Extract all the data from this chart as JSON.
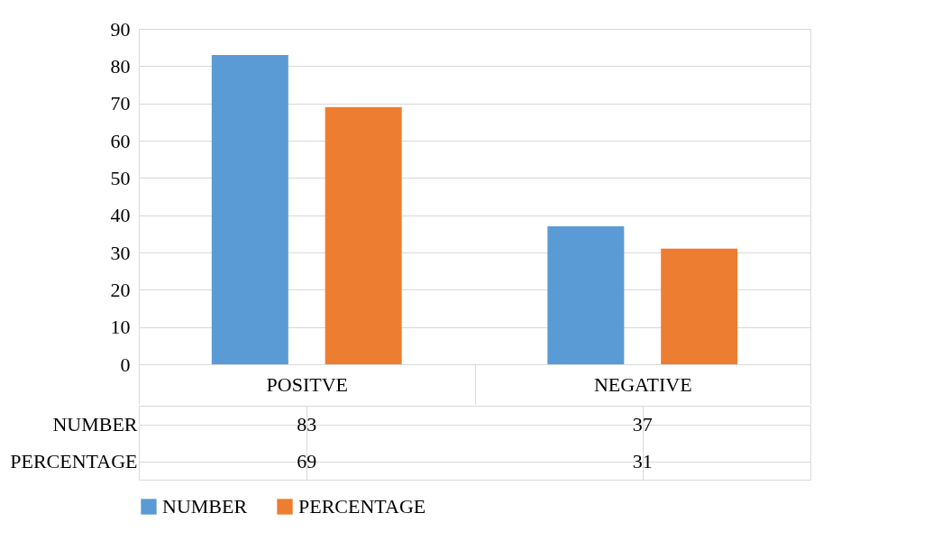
{
  "chart_data": {
    "type": "bar",
    "categories": [
      "POSITVE",
      "NEGATIVE"
    ],
    "series": [
      {
        "name": "NUMBER",
        "color": "#5b9bd5",
        "values": [
          83,
          37
        ]
      },
      {
        "name": "PERCENTAGE",
        "color": "#ed7d31",
        "values": [
          69,
          31
        ]
      }
    ],
    "ylim": [
      0,
      90
    ],
    "yticks": [
      0,
      10,
      20,
      30,
      40,
      50,
      60,
      70,
      80,
      90
    ],
    "grid": "y",
    "legend": "bottom",
    "data_labels": true
  }
}
